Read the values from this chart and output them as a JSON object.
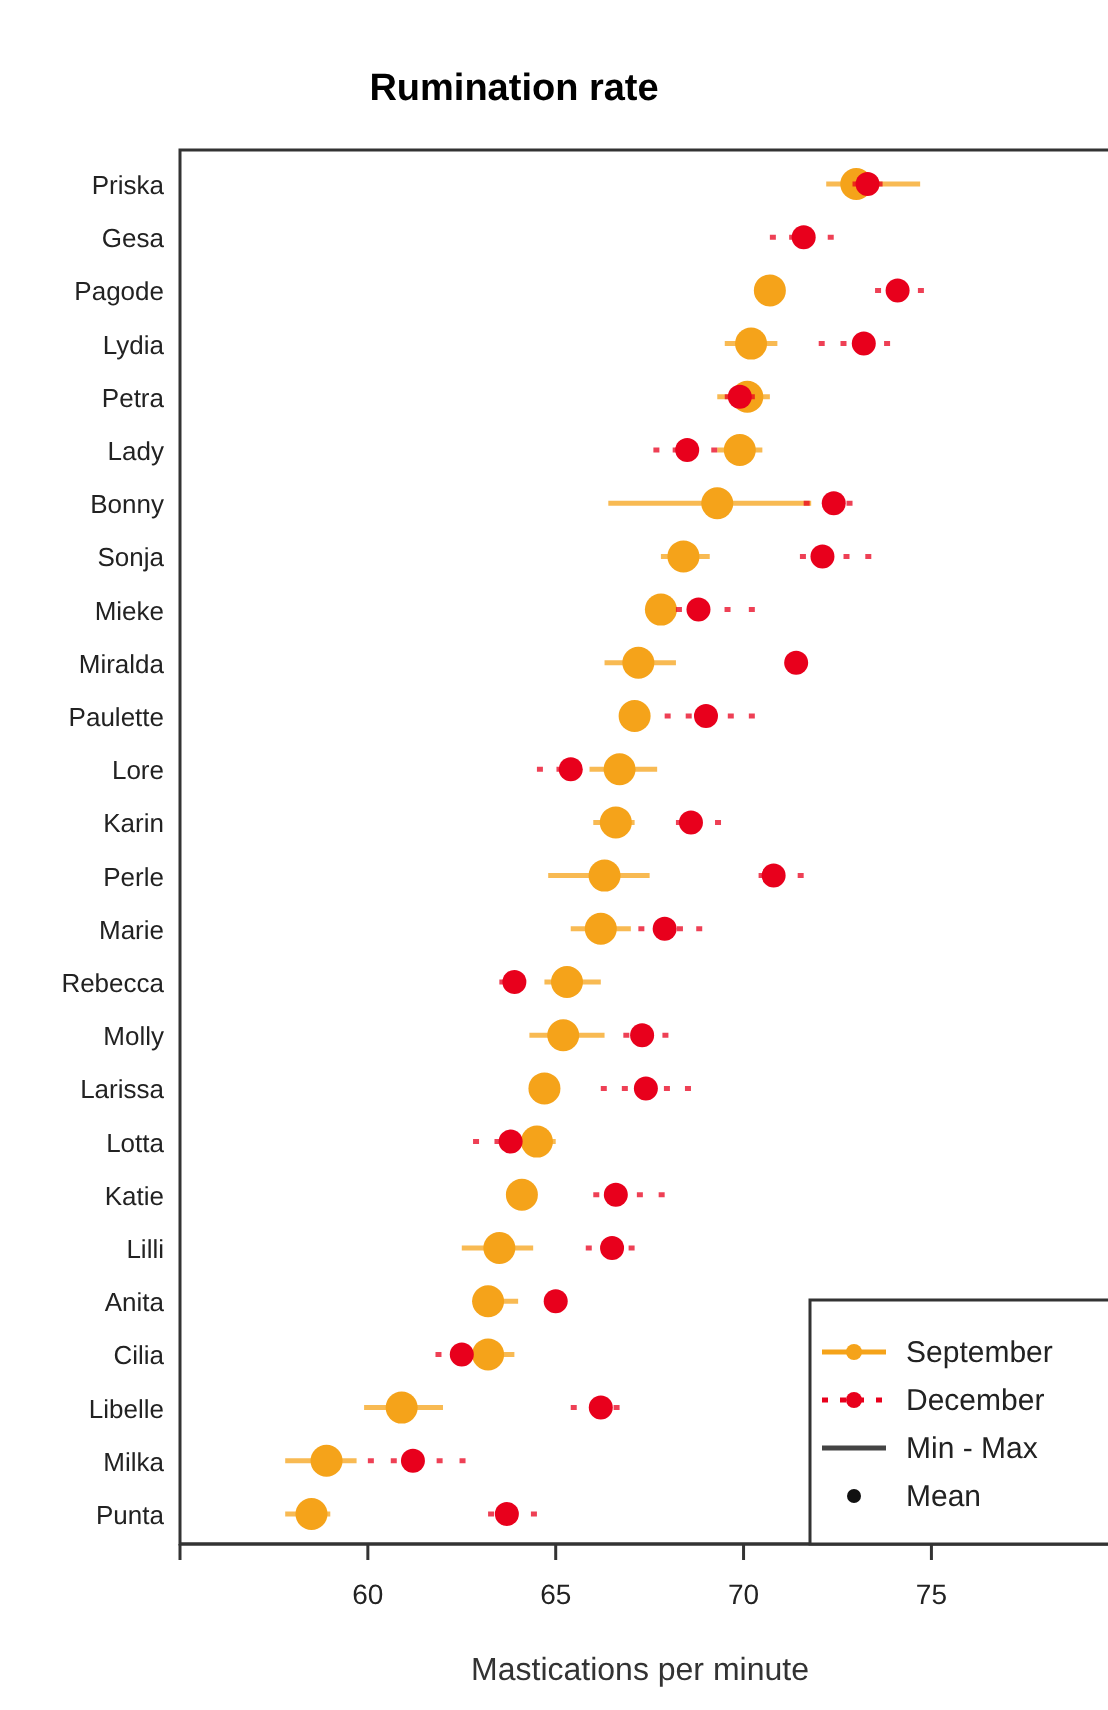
{
  "chart_data": {
    "type": "scatter",
    "orientation": "horizontal",
    "title": "Rumination rate",
    "xlabel": "Mastications per minute",
    "categories": [
      "Priska",
      "Gesa",
      "Pagode",
      "Lydia",
      "Petra",
      "Lady",
      "Bonny",
      "Sonja",
      "Mieke",
      "Miralda",
      "Paulette",
      "Lore",
      "Karin",
      "Perle",
      "Marie",
      "Rebecca",
      "Molly",
      "Larissa",
      "Lotta",
      "Katie",
      "Lilli",
      "Anita",
      "Cilia",
      "Libelle",
      "Milka",
      "Punta"
    ],
    "xlim": [
      55,
      79.7
    ],
    "xticks": [
      60,
      65,
      70,
      75
    ],
    "series": [
      {
        "name": "September",
        "color": "#f5a31a",
        "line_style": "solid",
        "values": [
          73.0,
          null,
          70.7,
          70.2,
          70.1,
          69.9,
          69.3,
          68.4,
          67.8,
          67.2,
          67.1,
          66.7,
          66.6,
          66.3,
          66.2,
          65.3,
          65.2,
          64.7,
          64.5,
          64.1,
          63.5,
          63.2,
          63.2,
          60.9,
          58.9,
          58.5
        ],
        "errors": [
          [
            72.2,
            74.7
          ],
          null,
          null,
          [
            69.5,
            70.9
          ],
          [
            69.3,
            70.7
          ],
          [
            69.3,
            70.5
          ],
          [
            66.4,
            71.8
          ],
          [
            67.8,
            69.1
          ],
          [
            67.5,
            68.2
          ],
          [
            66.3,
            68.2
          ],
          null,
          [
            65.9,
            67.7
          ],
          [
            66.0,
            67.1
          ],
          [
            64.8,
            67.5
          ],
          [
            65.4,
            67.0
          ],
          [
            64.7,
            66.2
          ],
          [
            64.3,
            66.3
          ],
          null,
          [
            64.1,
            65.0
          ],
          null,
          [
            62.5,
            64.4
          ],
          [
            62.8,
            64.0
          ],
          [
            62.9,
            63.9
          ],
          [
            59.9,
            62.0
          ],
          [
            57.8,
            59.7
          ],
          [
            57.8,
            59.0
          ]
        ]
      },
      {
        "name": "December",
        "color": "#e8001c",
        "line_style": "dashed",
        "values": [
          73.3,
          71.6,
          74.1,
          73.2,
          69.9,
          68.5,
          72.4,
          72.1,
          68.8,
          71.4,
          69.0,
          65.4,
          68.6,
          70.8,
          67.9,
          63.9,
          67.3,
          67.4,
          63.8,
          66.6,
          66.5,
          65.0,
          62.5,
          66.2,
          61.2,
          63.7
        ],
        "errors": [
          [
            72.9,
            73.7
          ],
          [
            70.7,
            72.4
          ],
          [
            73.5,
            74.8
          ],
          [
            72.0,
            73.9
          ],
          [
            69.5,
            70.3
          ],
          [
            67.6,
            69.3
          ],
          [
            71.6,
            72.9
          ],
          [
            71.5,
            73.4
          ],
          [
            68.2,
            70.3
          ],
          null,
          [
            67.9,
            70.3
          ],
          [
            64.5,
            65.7
          ],
          [
            68.2,
            69.4
          ],
          [
            70.4,
            71.6
          ],
          [
            67.2,
            68.9
          ],
          [
            63.5,
            64.1
          ],
          [
            66.8,
            68.0
          ],
          [
            66.2,
            68.6
          ],
          [
            62.8,
            64.1
          ],
          [
            66.0,
            67.9
          ],
          [
            65.8,
            67.1
          ],
          null,
          [
            61.8,
            62.8
          ],
          [
            65.4,
            66.7
          ],
          [
            60.0,
            62.6
          ],
          [
            63.2,
            64.5
          ]
        ]
      }
    ],
    "marker": "circle",
    "grid": false,
    "legend": "bottom right",
    "annotations": [
      "Min - Max",
      "Mean"
    ]
  }
}
